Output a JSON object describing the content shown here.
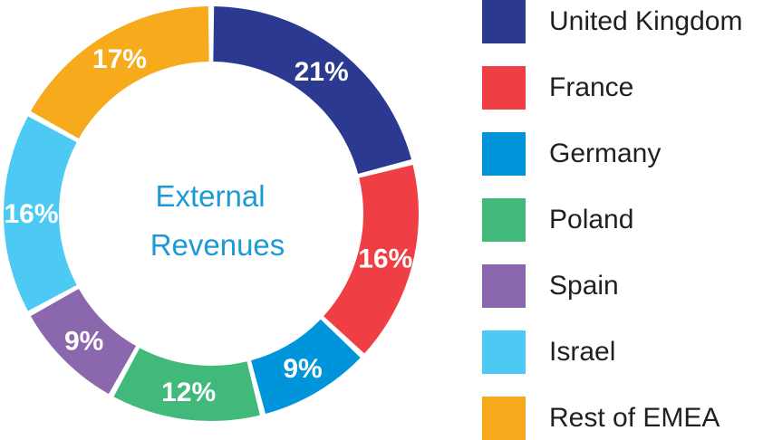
{
  "chart_data": {
    "type": "pie",
    "style": "donut",
    "center_label": [
      "External",
      "Revenues"
    ],
    "slices": [
      {
        "label": "United Kingdom",
        "value": 21,
        "value_label": "21%",
        "color": "#2b3990"
      },
      {
        "label": "France",
        "value": 16,
        "value_label": "16%",
        "color": "#ef3e44"
      },
      {
        "label": "Germany",
        "value": 9,
        "value_label": "9%",
        "color": "#0095da"
      },
      {
        "label": "Poland",
        "value": 12,
        "value_label": "12%",
        "color": "#41b97a"
      },
      {
        "label": "Spain",
        "value": 9,
        "value_label": "9%",
        "color": "#8b67ae"
      },
      {
        "label": "Israel",
        "value": 16,
        "value_label": "16%",
        "color": "#4ccaf3"
      },
      {
        "label": "Rest of EMEA",
        "value": 17,
        "value_label": "17%",
        "color": "#f6aa1c"
      }
    ],
    "legend_position": "right"
  }
}
